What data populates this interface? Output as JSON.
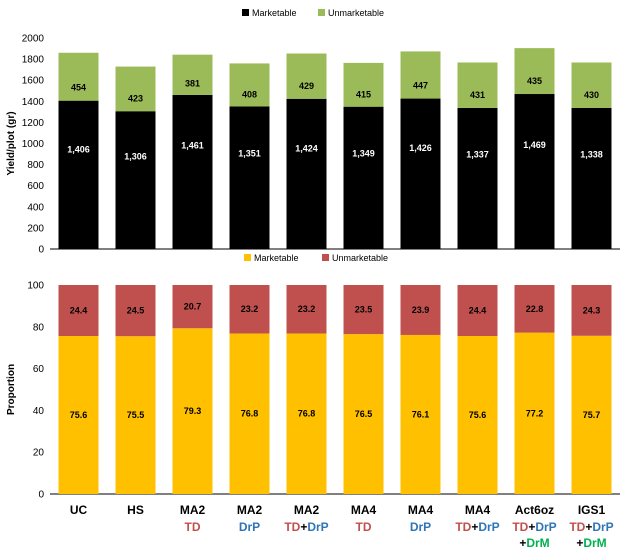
{
  "chart_data": [
    {
      "type": "bar",
      "stacked": true,
      "ylabel": "Yield/plot (gr)",
      "ylim": [
        0,
        2000
      ],
      "yticks": [
        0,
        200,
        400,
        600,
        800,
        1000,
        1200,
        1400,
        1600,
        1800,
        2000
      ],
      "legend_position": "top",
      "series": [
        {
          "name": "Marketable",
          "color": "#000000",
          "label_color": "#ffffff",
          "values": [
            1406,
            1306,
            1461,
            1351,
            1424,
            1349,
            1426,
            1337,
            1469,
            1338
          ],
          "labels": [
            "1,406",
            "1,306",
            "1,461",
            "1,351",
            "1,424",
            "1,349",
            "1,426",
            "1,337",
            "1,469",
            "1,338"
          ]
        },
        {
          "name": "Unmarketable",
          "color": "#9bbb59",
          "label_color": "#000000",
          "values": [
            454,
            423,
            381,
            408,
            429,
            415,
            447,
            431,
            435,
            430
          ],
          "labels": [
            "454",
            "423",
            "381",
            "408",
            "429",
            "415",
            "447",
            "431",
            "435",
            "430"
          ]
        }
      ]
    },
    {
      "type": "bar",
      "stacked": true,
      "ylabel": "Proportion",
      "ylim": [
        0,
        100
      ],
      "yticks": [
        0,
        20,
        40,
        60,
        80,
        100
      ],
      "legend_position": "top",
      "series": [
        {
          "name": "Marketable",
          "color": "#ffc000",
          "label_color": "#000000",
          "values": [
            75.6,
            75.5,
            79.3,
            76.8,
            76.8,
            76.5,
            76.1,
            75.6,
            77.2,
            75.7
          ],
          "labels": [
            "75.6",
            "75.5",
            "79.3",
            "76.8",
            "76.8",
            "76.5",
            "76.1",
            "75.6",
            "77.2",
            "75.7"
          ]
        },
        {
          "name": "Unmarketable",
          "color": "#c0504d",
          "label_color": "#000000",
          "values": [
            24.4,
            24.5,
            20.7,
            23.2,
            23.2,
            23.5,
            23.9,
            24.4,
            22.8,
            24.3
          ],
          "labels": [
            "24.4",
            "24.5",
            "20.7",
            "23.2",
            "23.2",
            "23.5",
            "23.9",
            "24.4",
            "22.8",
            "24.3"
          ]
        }
      ]
    }
  ],
  "categories": [
    {
      "name": "UC",
      "sub": []
    },
    {
      "name": "HS",
      "sub": []
    },
    {
      "name": "MA2",
      "sub": [
        [
          {
            "t": "TD",
            "c": "td"
          }
        ]
      ]
    },
    {
      "name": "MA2",
      "sub": [
        [
          {
            "t": "DrP",
            "c": "drp"
          }
        ]
      ]
    },
    {
      "name": "MA2",
      "sub": [
        [
          {
            "t": "TD",
            "c": "td"
          },
          {
            "t": "+",
            "c": "plus"
          },
          {
            "t": "DrP",
            "c": "drp"
          }
        ]
      ]
    },
    {
      "name": "MA4",
      "sub": [
        [
          {
            "t": "TD",
            "c": "td"
          }
        ]
      ]
    },
    {
      "name": "MA4",
      "sub": [
        [
          {
            "t": "DrP",
            "c": "drp"
          }
        ]
      ]
    },
    {
      "name": "MA4",
      "sub": [
        [
          {
            "t": "TD",
            "c": "td"
          },
          {
            "t": "+",
            "c": "plus"
          },
          {
            "t": "DrP",
            "c": "drp"
          }
        ]
      ]
    },
    {
      "name": "Act6oz",
      "sub": [
        [
          {
            "t": "TD",
            "c": "td"
          },
          {
            "t": "+",
            "c": "plus"
          },
          {
            "t": "DrP",
            "c": "drp"
          }
        ],
        [
          {
            "t": "+",
            "c": "plus"
          },
          {
            "t": "DrM",
            "c": "drm"
          }
        ]
      ]
    },
    {
      "name": "IGS1",
      "sub": [
        [
          {
            "t": "TD",
            "c": "td"
          },
          {
            "t": "+",
            "c": "plus"
          },
          {
            "t": "DrP",
            "c": "drp"
          }
        ],
        [
          {
            "t": "+",
            "c": "plus"
          },
          {
            "t": "DrM",
            "c": "drm"
          }
        ]
      ]
    }
  ],
  "sub_colors": {
    "td": "#c0504d",
    "drp": "#2e75b6",
    "drm": "#00b050",
    "plus": "#000000"
  }
}
